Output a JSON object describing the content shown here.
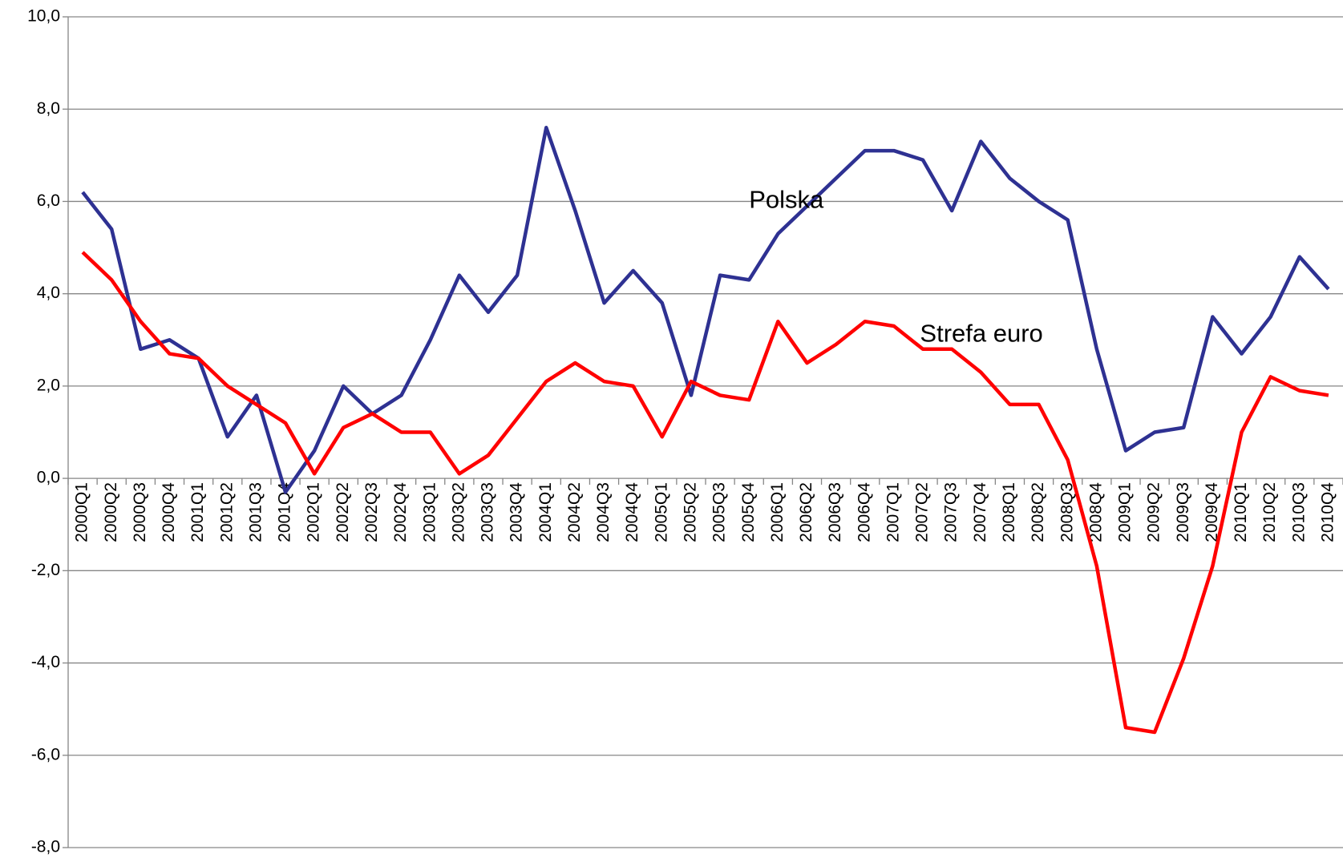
{
  "chart_data": {
    "type": "line",
    "categories": [
      "2000Q1",
      "2000Q2",
      "2000Q3",
      "2000Q4",
      "2001Q1",
      "2001Q2",
      "2001Q3",
      "2001Q4",
      "2002Q1",
      "2002Q2",
      "2002Q3",
      "2002Q4",
      "2003Q1",
      "2003Q2",
      "2003Q3",
      "2003Q4",
      "2004Q1",
      "2004Q2",
      "2004Q3",
      "2004Q4",
      "2005Q1",
      "2005Q2",
      "2005Q3",
      "2005Q4",
      "2006Q1",
      "2006Q2",
      "2006Q3",
      "2006Q4",
      "2007Q1",
      "2007Q2",
      "2007Q3",
      "2007Q4",
      "2008Q1",
      "2008Q2",
      "2008Q3",
      "2008Q4",
      "2009Q1",
      "2009Q2",
      "2009Q3",
      "2009Q4",
      "2010Q1",
      "2010Q2",
      "2010Q3",
      "2010Q4"
    ],
    "series": [
      {
        "name": "Polska",
        "color": "#2e3192",
        "values": [
          6.2,
          5.4,
          2.8,
          3.0,
          2.6,
          0.9,
          1.8,
          -0.3,
          0.6,
          2.0,
          1.4,
          1.8,
          3.0,
          4.4,
          3.6,
          4.4,
          7.6,
          5.8,
          3.8,
          4.5,
          3.8,
          1.8,
          4.4,
          4.3,
          5.3,
          5.9,
          6.5,
          7.1,
          7.1,
          6.9,
          5.8,
          7.3,
          6.5,
          6.0,
          5.6,
          2.8,
          0.6,
          1.0,
          1.1,
          3.5,
          2.7,
          3.5,
          4.8,
          4.1
        ]
      },
      {
        "name": "Strefa euro",
        "color": "#ff0000",
        "values": [
          4.9,
          4.3,
          3.4,
          2.7,
          2.6,
          2.0,
          1.6,
          1.2,
          0.1,
          1.1,
          1.4,
          1.0,
          1.0,
          0.1,
          0.5,
          1.3,
          2.1,
          2.5,
          2.1,
          2.0,
          0.9,
          2.1,
          1.8,
          1.7,
          3.4,
          2.5,
          2.9,
          3.4,
          3.3,
          2.8,
          2.8,
          2.3,
          1.6,
          1.6,
          0.4,
          -1.9,
          -5.4,
          -5.5,
          -3.9,
          -1.9,
          1.0,
          2.2,
          1.9,
          1.8
        ]
      }
    ],
    "ylim": [
      -8,
      10
    ],
    "yticks": [
      {
        "value": -8,
        "label": "-8,0"
      },
      {
        "value": -6,
        "label": "-6,0"
      },
      {
        "value": -4,
        "label": "-4,0"
      },
      {
        "value": -2,
        "label": "-2,0"
      },
      {
        "value": 0,
        "label": "0,0"
      },
      {
        "value": 2,
        "label": "2,0"
      },
      {
        "value": 4,
        "label": "4,0"
      },
      {
        "value": 6,
        "label": "6,0"
      },
      {
        "value": 8,
        "label": "8,0"
      },
      {
        "value": 10,
        "label": "10,0"
      }
    ],
    "grid": true
  }
}
